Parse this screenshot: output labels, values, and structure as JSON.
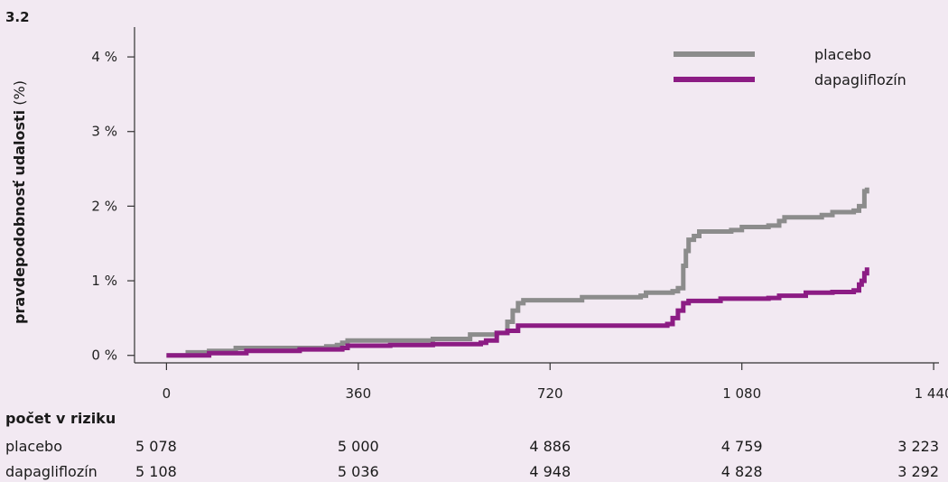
{
  "figure_label": "3.2",
  "chart_data": {
    "type": "line",
    "title": "",
    "ylabel_bold": "pravdepodobnosť udalosti",
    "ylabel_unit": " (%)",
    "xlabel": "",
    "xlim": [
      -60,
      1450
    ],
    "ylim": [
      -0.1,
      4.4
    ],
    "x_ticks": [
      0,
      360,
      720,
      1080,
      1440
    ],
    "x_tick_labels": [
      "0",
      "360",
      "720",
      "1 080",
      "1 440"
    ],
    "y_ticks": [
      0,
      1,
      2,
      3,
      4
    ],
    "y_tick_labels": [
      "0 %",
      "1 %",
      "2 %",
      "3 %",
      "4 %"
    ],
    "legend_position": "top-right",
    "series": [
      {
        "name": "placebo",
        "color": "#8c8c8c",
        "points": [
          [
            0,
            0
          ],
          [
            40,
            0.04
          ],
          [
            80,
            0.06
          ],
          [
            130,
            0.1
          ],
          [
            200,
            0.1
          ],
          [
            300,
            0.12
          ],
          [
            320,
            0.14
          ],
          [
            330,
            0.17
          ],
          [
            340,
            0.2
          ],
          [
            400,
            0.2
          ],
          [
            500,
            0.22
          ],
          [
            570,
            0.28
          ],
          [
            620,
            0.3
          ],
          [
            640,
            0.45
          ],
          [
            650,
            0.6
          ],
          [
            660,
            0.7
          ],
          [
            670,
            0.74
          ],
          [
            760,
            0.74
          ],
          [
            780,
            0.78
          ],
          [
            840,
            0.78
          ],
          [
            890,
            0.8
          ],
          [
            900,
            0.84
          ],
          [
            950,
            0.86
          ],
          [
            960,
            0.9
          ],
          [
            970,
            1.2
          ],
          [
            975,
            1.4
          ],
          [
            980,
            1.55
          ],
          [
            990,
            1.6
          ],
          [
            1000,
            1.66
          ],
          [
            1060,
            1.68
          ],
          [
            1080,
            1.72
          ],
          [
            1130,
            1.74
          ],
          [
            1150,
            1.8
          ],
          [
            1160,
            1.85
          ],
          [
            1230,
            1.88
          ],
          [
            1250,
            1.92
          ],
          [
            1290,
            1.94
          ],
          [
            1300,
            2.0
          ],
          [
            1310,
            2.2
          ],
          [
            1315,
            2.25
          ]
        ]
      },
      {
        "name": "dapagliflozín",
        "color": "#8c1c84",
        "points": [
          [
            0,
            0
          ],
          [
            70,
            0
          ],
          [
            80,
            0.03
          ],
          [
            150,
            0.06
          ],
          [
            250,
            0.08
          ],
          [
            320,
            0.08
          ],
          [
            330,
            0.1
          ],
          [
            340,
            0.13
          ],
          [
            420,
            0.14
          ],
          [
            500,
            0.15
          ],
          [
            590,
            0.17
          ],
          [
            600,
            0.2
          ],
          [
            620,
            0.3
          ],
          [
            640,
            0.33
          ],
          [
            660,
            0.4
          ],
          [
            760,
            0.4
          ],
          [
            880,
            0.4
          ],
          [
            940,
            0.42
          ],
          [
            950,
            0.5
          ],
          [
            960,
            0.6
          ],
          [
            970,
            0.7
          ],
          [
            980,
            0.73
          ],
          [
            1040,
            0.76
          ],
          [
            1130,
            0.77
          ],
          [
            1150,
            0.8
          ],
          [
            1200,
            0.84
          ],
          [
            1250,
            0.85
          ],
          [
            1290,
            0.87
          ],
          [
            1300,
            0.95
          ],
          [
            1305,
            1.0
          ],
          [
            1310,
            1.1
          ],
          [
            1315,
            1.18
          ]
        ]
      }
    ]
  },
  "risk_table": {
    "title": "počet v riziku",
    "rows": [
      {
        "label": "placebo",
        "values": [
          "5 078",
          "5 000",
          "4 886",
          "4 759",
          "3 223"
        ]
      },
      {
        "label": "dapagliflozín",
        "values": [
          "5 108",
          "5 036",
          "4 948",
          "4 828",
          "3 292"
        ]
      }
    ]
  }
}
